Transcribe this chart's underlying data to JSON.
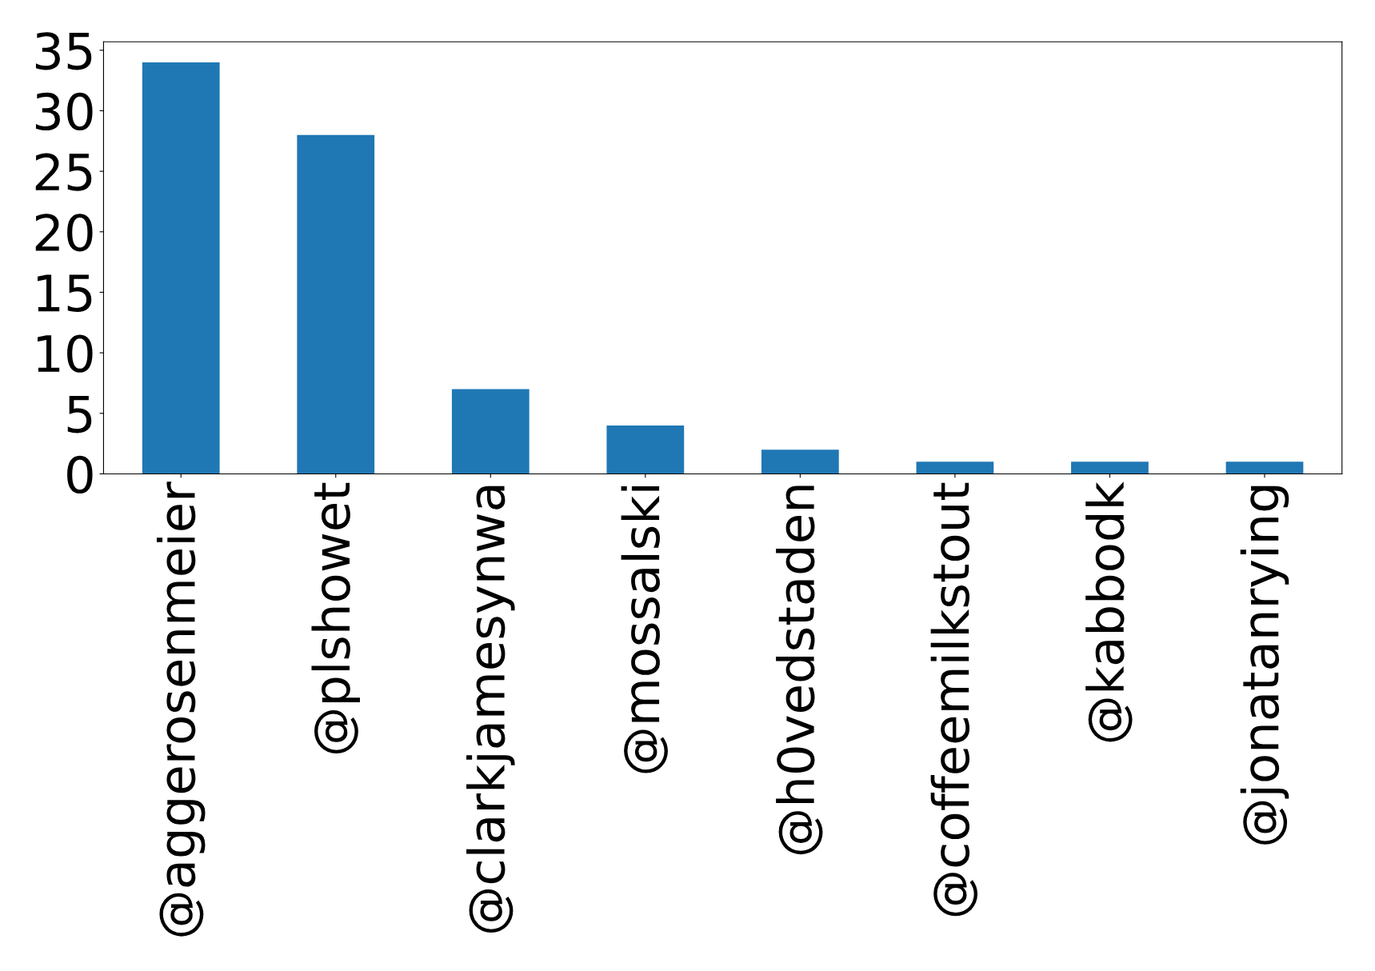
{
  "chart_data": {
    "type": "bar",
    "categories": [
      "@aggerosenmeier",
      "@plshowet",
      "@clarkjamesynwa",
      "@mossalski",
      "@h0vedstaden",
      "@coffeemilkstout",
      "@kabbodk",
      "@jonatanrying"
    ],
    "values": [
      34,
      28,
      7,
      4,
      2,
      1,
      1,
      1
    ],
    "color": "#1f77b4",
    "ylim": [
      0,
      35.7
    ],
    "yticks": [
      0,
      5,
      10,
      15,
      20,
      25,
      30,
      35
    ],
    "grid": false,
    "legend": false
  }
}
